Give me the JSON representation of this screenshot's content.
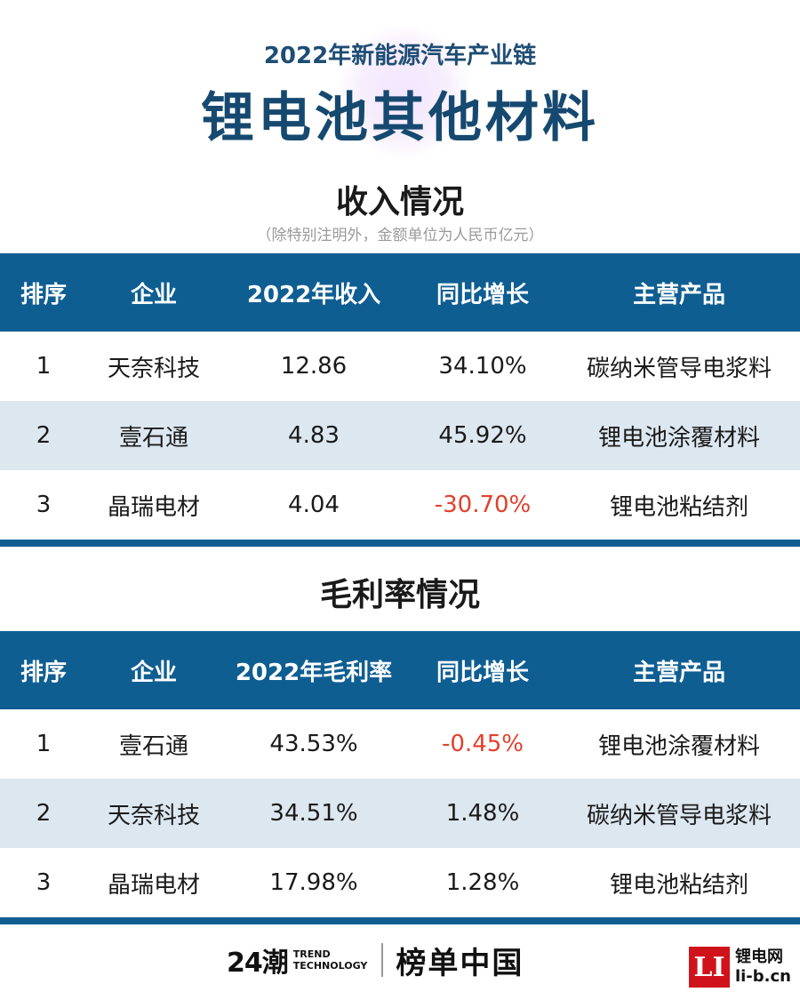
{
  "header": {
    "super_title": "2022年新能源汽车产业链",
    "title": "锂电池其他材料"
  },
  "revenue": {
    "section_title": "收入情况",
    "note": "（除特别注明外，金额单位为人民币亿元）",
    "columns": [
      "排序",
      "企业",
      "2022年收入",
      "同比增长",
      "主营产品"
    ],
    "rows": [
      {
        "rank": "1",
        "company": "天奈科技",
        "value": "12.86",
        "growth": "34.10%",
        "product": "碳纳米管导电浆料"
      },
      {
        "rank": "2",
        "company": "壹石通",
        "value": "4.83",
        "growth": "45.92%",
        "product": "锂电池涂覆材料"
      },
      {
        "rank": "3",
        "company": "晶瑞电材",
        "value": "4.04",
        "growth": "-30.70%",
        "product": "锂电池粘结剂"
      }
    ]
  },
  "margin": {
    "section_title": "毛利率情况",
    "columns": [
      "排序",
      "企业",
      "2022年毛利率",
      "同比增长",
      "主营产品"
    ],
    "rows": [
      {
        "rank": "1",
        "company": "壹石通",
        "value": "43.53%",
        "growth": "-0.45%",
        "product": "锂电池涂覆材料"
      },
      {
        "rank": "2",
        "company": "天奈科技",
        "value": "34.51%",
        "growth": "1.48%",
        "product": "碳纳米管导电浆料"
      },
      {
        "rank": "3",
        "company": "晶瑞电材",
        "value": "17.98%",
        "growth": "1.28%",
        "product": "锂电池粘结剂"
      }
    ]
  },
  "footer": {
    "brand_24": "24潮",
    "brand_trend_line1": "TREND",
    "brand_trend_line2": "TECHNOLOGY",
    "brand_bangdan": "榜单中国",
    "site_logo": "LI",
    "site_name": "锂电网",
    "site_url": "li-b.cn"
  },
  "colors": {
    "header_blue": "#0f5e92",
    "title_blue": "#16496f",
    "row_alt": "#dde7f0",
    "negative": "#e2402c",
    "site_red": "#d0131b"
  }
}
